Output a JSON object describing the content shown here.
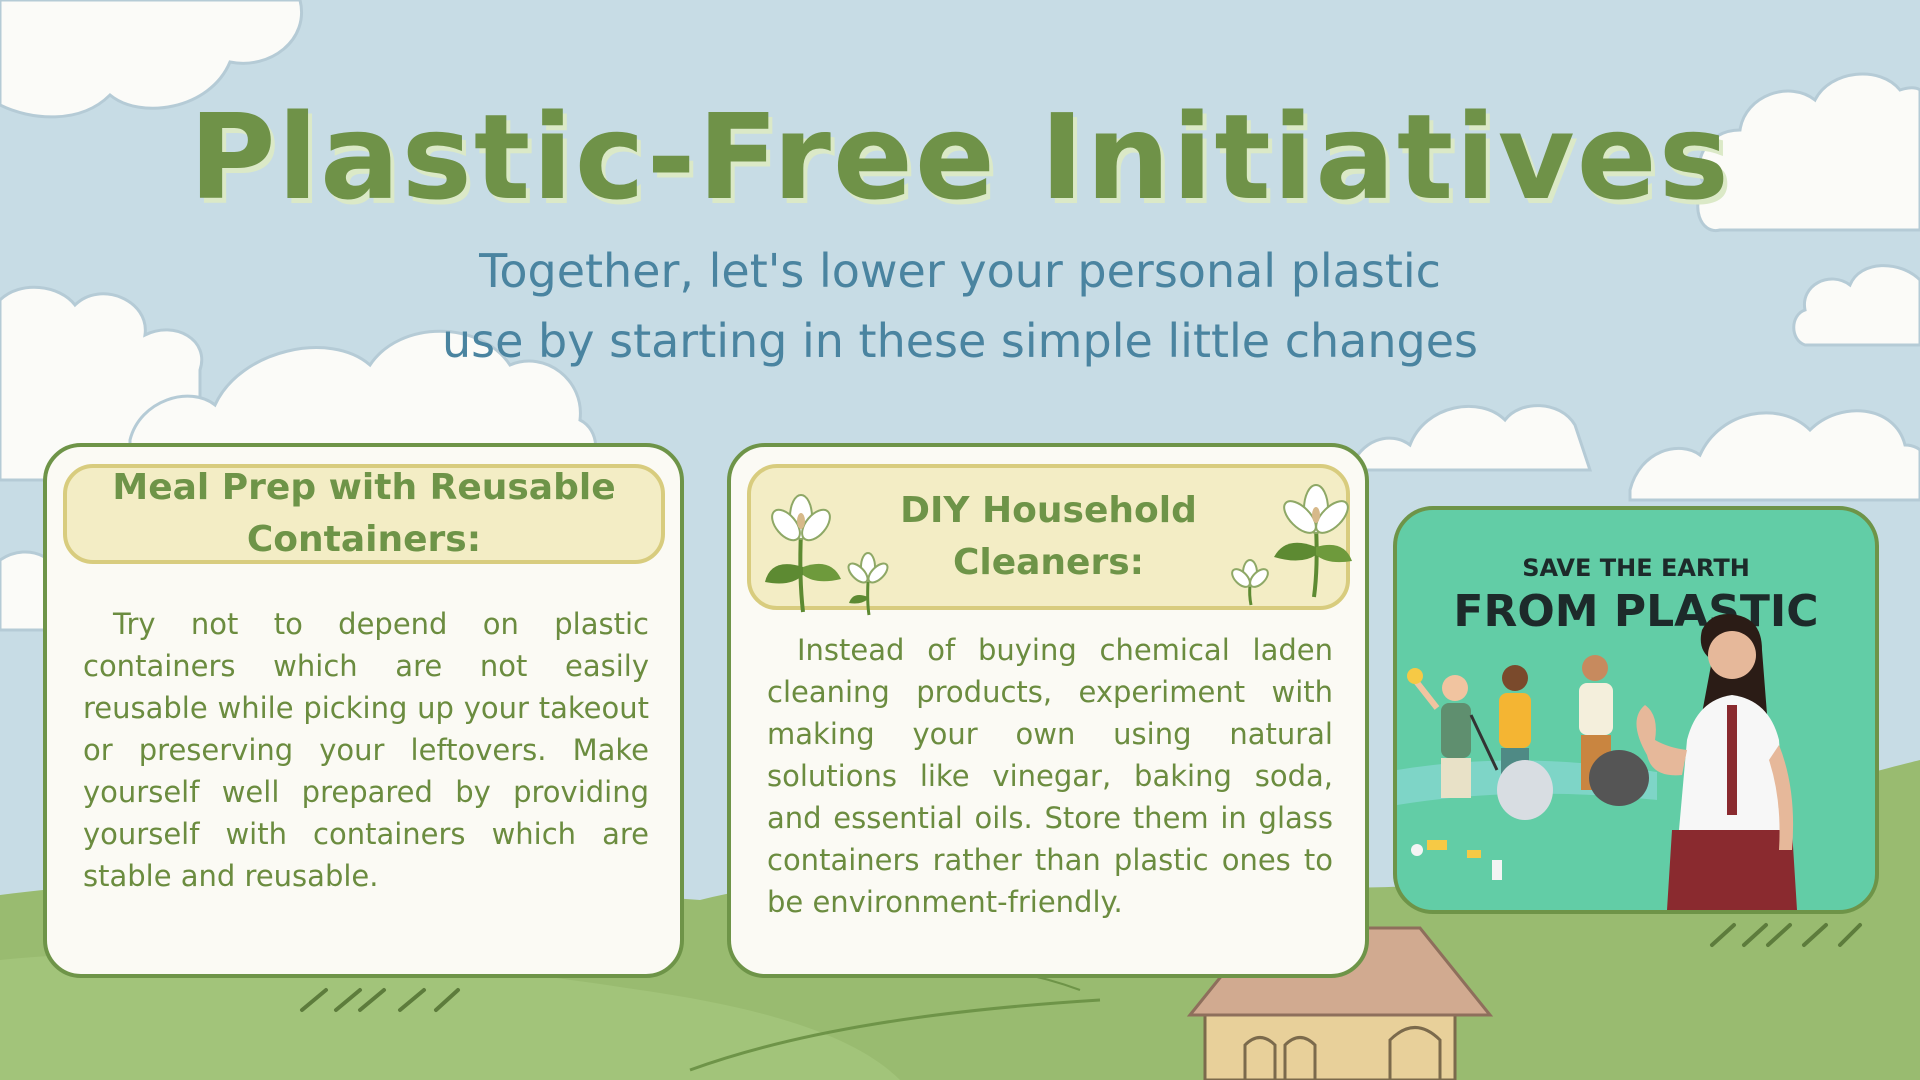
{
  "title": "Plastic-Free Initiatives",
  "subtitle": {
    "line1": "Together, let's lower your personal plastic",
    "line2": "use by starting in these simple little changes"
  },
  "cards": [
    {
      "heading_line1": "Meal Prep with Reusable",
      "heading_line2": "Containers:",
      "body": "Try not to depend on plastic containers which are not easily reusable while picking up your takeout or preserving your leftovers. Make yourself well prepared by providing yourself with containers which are stable and reusable."
    },
    {
      "heading_line1": "DIY Household",
      "heading_line2": "Cleaners:",
      "body": "Instead of buying chemical laden cleaning products, experiment with making your own using natural solutions like vinegar, baking soda, and essential oils. Store them in glass containers rather than plastic ones to be environment-friendly."
    }
  ],
  "photo": {
    "line1": "SAVE THE EARTH",
    "line2": "FROM PLASTIC"
  },
  "colors": {
    "sky": "#c7dce5",
    "accent_green": "#6e9448",
    "grass": "#9cbd72",
    "subtitle_blue": "#4a84a0",
    "card_bg": "#fbfaf4",
    "heading_bg": "#f3edc5",
    "photo_bg": "#62cda6"
  }
}
